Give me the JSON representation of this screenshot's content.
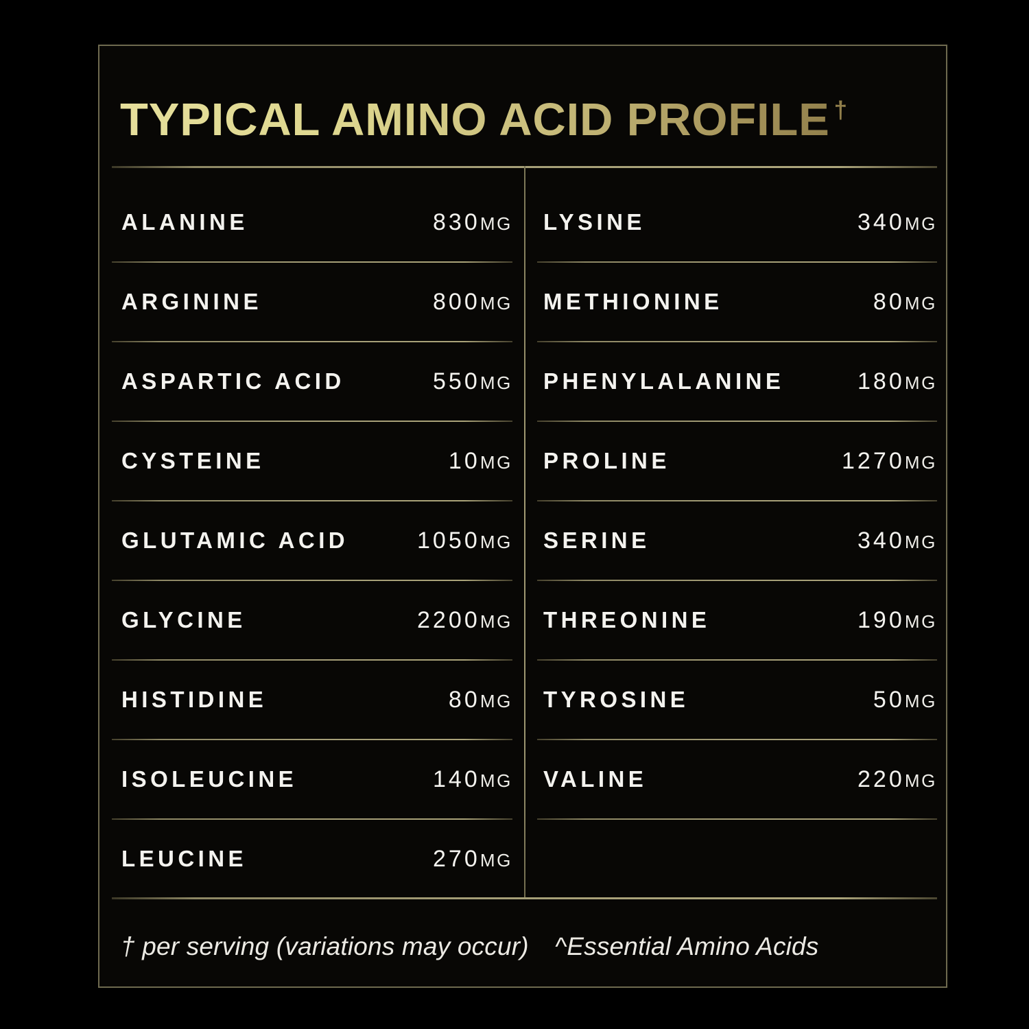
{
  "title": {
    "text": "TYPICAL AMINO ACID PROFILE",
    "superscript": "†"
  },
  "table": {
    "left_column": [
      {
        "name": "ALANINE",
        "value": "830",
        "unit": "MG"
      },
      {
        "name": "ARGININE",
        "value": "800",
        "unit": "MG"
      },
      {
        "name": "ASPARTIC ACID",
        "value": "550",
        "unit": "MG"
      },
      {
        "name": "CYSTEINE",
        "value": "10",
        "unit": "MG"
      },
      {
        "name": "GLUTAMIC ACID",
        "value": "1050",
        "unit": "MG"
      },
      {
        "name": "GLYCINE",
        "value": "2200",
        "unit": "MG"
      },
      {
        "name": "HISTIDINE",
        "value": "80",
        "unit": "MG"
      },
      {
        "name": "ISOLEUCINE",
        "value": "140",
        "unit": "MG"
      },
      {
        "name": "LEUCINE",
        "value": "270",
        "unit": "MG"
      }
    ],
    "right_column": [
      {
        "name": "LYSINE",
        "value": "340",
        "unit": "MG"
      },
      {
        "name": "METHIONINE",
        "value": "80",
        "unit": "MG"
      },
      {
        "name": "PHENYLALANINE",
        "value": "180",
        "unit": "MG"
      },
      {
        "name": "PROLINE",
        "value": "1270",
        "unit": "MG"
      },
      {
        "name": "SERINE",
        "value": "340",
        "unit": "MG"
      },
      {
        "name": "THREONINE",
        "value": "190",
        "unit": "MG"
      },
      {
        "name": "TYROSINE",
        "value": "50",
        "unit": "MG"
      },
      {
        "name": "VALINE",
        "value": "220",
        "unit": "MG"
      }
    ]
  },
  "footnotes": {
    "serving": "† per serving (variations may occur)",
    "essential": "^Essential Amino Acids"
  },
  "colors": {
    "background": "#000000",
    "panel_background": "#080705",
    "panel_border": "#6e6a4f",
    "gold_light": "#e6df9c",
    "gold_dark": "#8f7d49",
    "rule_gold": "#a59e77",
    "text_white": "#f4f3ef"
  }
}
